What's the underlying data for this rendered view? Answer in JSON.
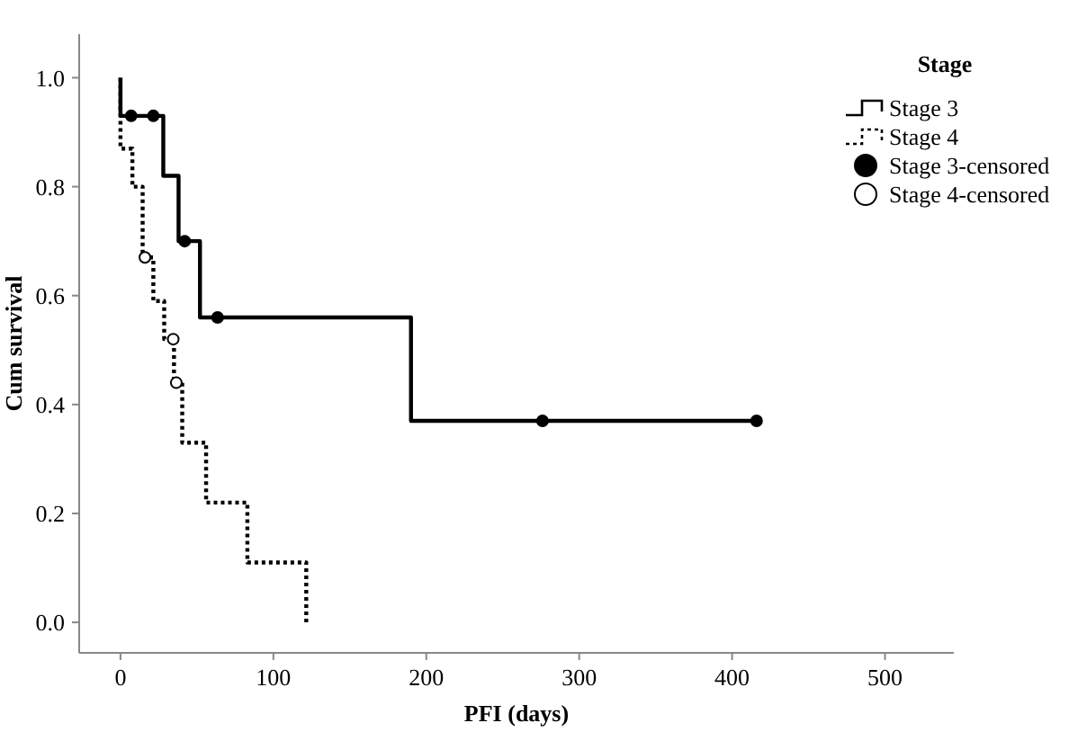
{
  "chart_data": {
    "type": "step",
    "xlabel": "PFI (days)",
    "ylabel": "Cum survival",
    "legend_title": "Stage",
    "legend": "right",
    "xlim": [
      -27,
      545
    ],
    "xticks": [
      0,
      100,
      200,
      300,
      400,
      500
    ],
    "ylim": [
      -0.056,
      1.08
    ],
    "yticks": [
      {
        "value": 0,
        "label": "0.0"
      },
      {
        "value": 0.2,
        "label": "0.2"
      },
      {
        "value": 0.4,
        "label": "0.4"
      },
      {
        "value": 0.6,
        "label": "0.6"
      },
      {
        "value": 0.8,
        "label": "0.8"
      },
      {
        "value": 1,
        "label": "1.0"
      }
    ],
    "grid": false,
    "series": [
      {
        "name": "Stage 3",
        "color": "#000000",
        "line_style": "solid",
        "x": [
          0,
          0,
          28,
          38,
          52,
          190,
          416
        ],
        "values": [
          1.0,
          0.93,
          0.82,
          0.7,
          0.56,
          0.37,
          0.37
        ]
      },
      {
        "name": "Stage 4",
        "color": "#000000",
        "line_style": "dotted",
        "x": [
          0,
          0,
          7.8,
          14.5,
          21.5,
          28.6,
          35,
          40.4,
          56,
          83,
          121.5
        ],
        "values": [
          1.0,
          0.87,
          0.8,
          0.67,
          0.59,
          0.52,
          0.44,
          0.33,
          0.22,
          0.11,
          0
        ]
      },
      {
        "name": "Stage 3-censored",
        "type": "scatter",
        "color": "#000000",
        "marker": "circle",
        "x": [
          7,
          21.5,
          42,
          63.5,
          276,
          416
        ],
        "values": [
          0.93,
          0.93,
          0.7,
          0.56,
          0.37,
          0.37
        ]
      },
      {
        "name": "Stage 4-censored",
        "type": "scatter",
        "color": "#ffffff",
        "marker": "circle",
        "x": [
          16,
          34.5,
          36.5
        ],
        "values": [
          0.67,
          0.52,
          0.44
        ]
      }
    ]
  }
}
